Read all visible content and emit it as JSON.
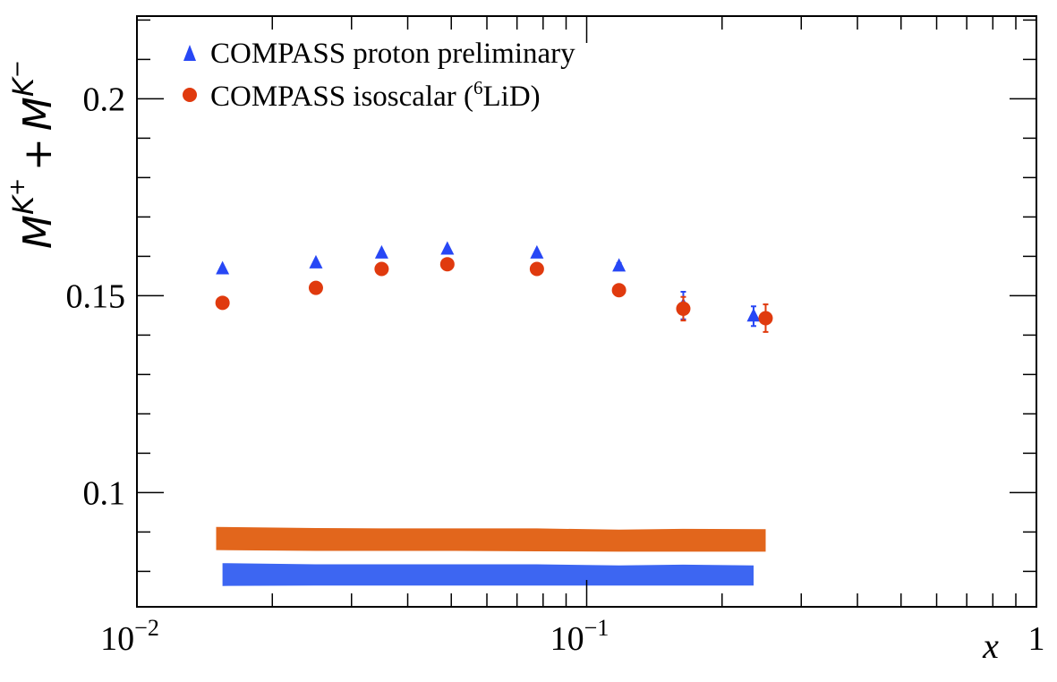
{
  "chart_data": {
    "type": "scatter",
    "xscale": "log",
    "xlim": [
      0.01,
      1
    ],
    "ylim": [
      0.071,
      0.221
    ],
    "xticks": [
      {
        "value": 0.01,
        "base": "10",
        "exp": "−2"
      },
      {
        "value": 0.1,
        "base": "10",
        "exp": "−1"
      },
      {
        "value": 1,
        "label": "1"
      }
    ],
    "yticks": [
      {
        "value": 0.1,
        "label": "0.1"
      },
      {
        "value": 0.15,
        "label": "0.15"
      },
      {
        "value": 0.2,
        "label": "0.2"
      }
    ],
    "xlabel": "x",
    "ylabel": {
      "sym": "M",
      "sup1": "K",
      "sup1b": "+",
      "plus": "+",
      "sup2": "K",
      "sup2b": "−"
    },
    "legend": {
      "position": "top-left",
      "entries": [
        {
          "text": "COMPASS proton preliminary",
          "marker": "triangle",
          "color": "#2747F5"
        },
        {
          "text_pre": "COMPASS isoscalar (",
          "sup": "6",
          "text_post": "LiD)",
          "marker": "circle",
          "color": "#E03A0E"
        }
      ]
    },
    "series": [
      {
        "name": "COMPASS proton preliminary",
        "marker": "triangle",
        "color": "#2747F5",
        "points": [
          {
            "x": 0.0155,
            "y": 0.1568,
            "err": 0.0004
          },
          {
            "x": 0.025,
            "y": 0.1583,
            "err": 0.0004
          },
          {
            "x": 0.035,
            "y": 0.1608,
            "err": 0.0004
          },
          {
            "x": 0.049,
            "y": 0.1618,
            "err": 0.0004
          },
          {
            "x": 0.0775,
            "y": 0.1608,
            "err": 0.0004
          },
          {
            "x": 0.118,
            "y": 0.1575,
            "err": 0.0008
          },
          {
            "x": 0.164,
            "y": 0.1475,
            "err": 0.0035
          },
          {
            "x": 0.235,
            "y": 0.1448,
            "err": 0.0025
          }
        ]
      },
      {
        "name": "COMPASS isoscalar (6LiD)",
        "marker": "circle",
        "color": "#E03A0E",
        "points": [
          {
            "x": 0.0155,
            "y": 0.1482,
            "err": 0.0004
          },
          {
            "x": 0.025,
            "y": 0.152,
            "err": 0.0004
          },
          {
            "x": 0.035,
            "y": 0.1568,
            "err": 0.0004
          },
          {
            "x": 0.049,
            "y": 0.158,
            "err": 0.0004
          },
          {
            "x": 0.0775,
            "y": 0.1568,
            "err": 0.0004
          },
          {
            "x": 0.118,
            "y": 0.1514,
            "err": 0.0008
          },
          {
            "x": 0.164,
            "y": 0.1467,
            "err": 0.003
          },
          {
            "x": 0.25,
            "y": 0.1443,
            "err": 0.0035
          }
        ]
      }
    ],
    "bands": [
      {
        "color": "#E2661C",
        "x": [
          0.015,
          0.025,
          0.035,
          0.049,
          0.0775,
          0.118,
          0.164,
          0.25
        ],
        "lo": [
          0.0854,
          0.0852,
          0.0852,
          0.0852,
          0.0851,
          0.085,
          0.085,
          0.085
        ],
        "hi": [
          0.0913,
          0.091,
          0.0909,
          0.0909,
          0.0909,
          0.0906,
          0.0908,
          0.0907
        ]
      },
      {
        "color": "#3D66F2",
        "x": [
          0.0155,
          0.025,
          0.035,
          0.049,
          0.0775,
          0.118,
          0.164,
          0.235
        ],
        "lo": [
          0.0763,
          0.0764,
          0.0764,
          0.0764,
          0.0764,
          0.0764,
          0.0764,
          0.0764
        ],
        "hi": [
          0.0821,
          0.0818,
          0.0818,
          0.0818,
          0.0818,
          0.0815,
          0.0817,
          0.0815
        ]
      }
    ]
  }
}
